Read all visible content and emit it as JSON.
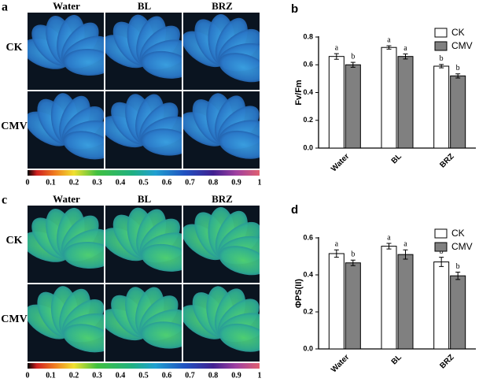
{
  "panels": [
    {
      "label": "a",
      "columns": [
        "Water",
        "BL",
        "BRZ"
      ],
      "rows": [
        "CK",
        "CMV"
      ],
      "colorbar_ticks": [
        0,
        0.1,
        0.2,
        0.3,
        0.4,
        0.5,
        0.6,
        0.7,
        0.8,
        0.9,
        1
      ]
    },
    {
      "label": "c",
      "columns": [
        "Water",
        "BL",
        "BRZ"
      ],
      "rows": [
        "CK",
        "CMV"
      ],
      "colorbar_ticks": [
        0,
        0.1,
        0.2,
        0.3,
        0.4,
        0.5,
        0.6,
        0.7,
        0.8,
        0.9,
        1
      ]
    }
  ],
  "chart_data": [
    {
      "type": "bar",
      "label": "b",
      "y_label": "Fv/Fm",
      "categories": [
        "Water",
        "BL",
        "BRZ"
      ],
      "series": [
        {
          "name": "CK",
          "color": "#ffffff",
          "values": [
            0.66,
            0.725,
            0.59
          ],
          "errors": [
            0.02,
            0.012,
            0.012
          ],
          "letters": [
            "a",
            "a",
            "b"
          ]
        },
        {
          "name": "CMV",
          "color": "#808080",
          "values": [
            0.6,
            0.66,
            0.52
          ],
          "errors": [
            0.018,
            0.018,
            0.015
          ],
          "letters": [
            "b",
            "a",
            "b"
          ]
        }
      ],
      "ylim": [
        0,
        0.8
      ],
      "yticks": [
        {
          "value": 0,
          "label": "0.0"
        },
        0.2,
        0.4,
        0.6,
        0.8
      ]
    },
    {
      "type": "bar",
      "label": "d",
      "y_label": "ΦPS(II)",
      "categories": [
        "Water",
        "BL",
        "BRZ"
      ],
      "series": [
        {
          "name": "CK",
          "color": "#ffffff",
          "values": [
            0.515,
            0.555,
            0.47
          ],
          "errors": [
            0.02,
            0.015,
            0.025
          ],
          "letters": [
            "a",
            "a",
            "b"
          ]
        },
        {
          "name": "CMV",
          "color": "#808080",
          "values": [
            0.465,
            0.51,
            0.395
          ],
          "errors": [
            0.015,
            0.025,
            0.02
          ],
          "letters": [
            "b",
            "a",
            "b"
          ]
        }
      ],
      "ylim": [
        0,
        0.6
      ],
      "yticks": [
        {
          "value": 0,
          "label": "0.0"
        },
        0.2,
        0.4,
        0.6
      ]
    }
  ]
}
